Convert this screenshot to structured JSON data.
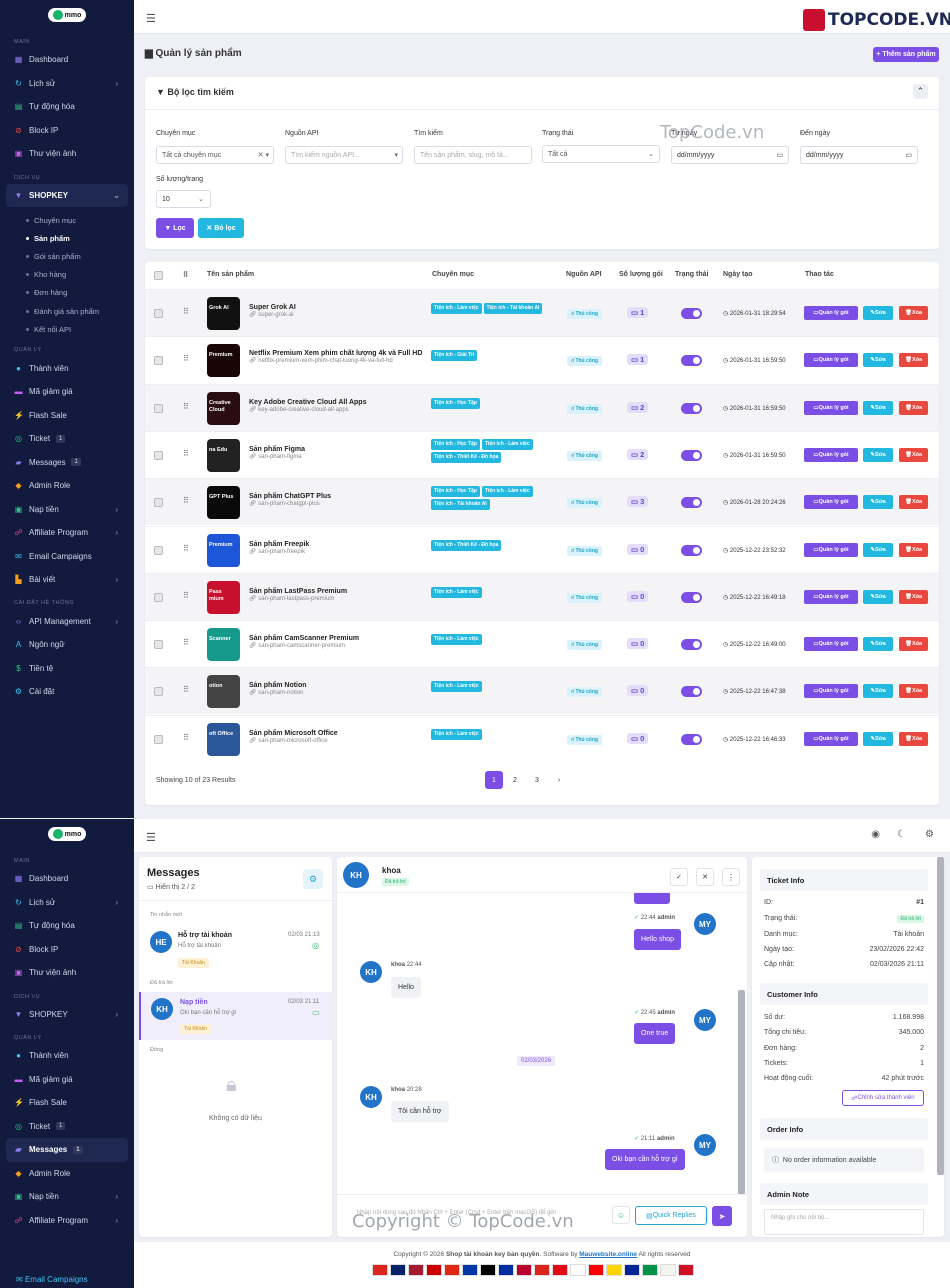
{
  "brand": "mmo",
  "topcode_logo": "TOPCODE.VN",
  "watermark_mid": "TopCode.vn",
  "watermark_bottom": "Copyright © TopCode.vn",
  "sidebar1": {
    "sec_main": "MAIN",
    "dashboard": "Dashboard",
    "lich_su": "Lịch sử",
    "tu_dong_hoa": "Tự động hóa",
    "block_ip": "Block IP",
    "thu_vien": "Thư viện ảnh",
    "sec_dich_vu": "DỊCH VỤ",
    "shopkey": "SHOPKEY",
    "sub": [
      "Chuyên mục",
      "Sản phẩm",
      "Gói sản phẩm",
      "Kho hàng",
      "Đơn hàng",
      "Đánh giá sản phẩm",
      "Kết nối API"
    ],
    "sec_quan_ly": "QUẢN LÝ",
    "thanh_vien": "Thành viên",
    "ma_giam_gia": "Mã giảm giá",
    "flash_sale": "Flash Sale",
    "ticket": "Ticket",
    "ticket_badge": "1",
    "messages": "Messages",
    "messages_badge": "1",
    "admin_role": "Admin Role",
    "nap_tien": "Nạp tiền",
    "affiliate": "Affiliate Program",
    "email": "Email Campaigns",
    "bai_viet": "Bài viết",
    "sec_cai_dat": "CÀI ĐẶT HỆ THỐNG",
    "api_mgmt": "API Management",
    "ngon_ngu": "Ngôn ngữ",
    "tien_te": "Tiền tệ",
    "cai_dat": "Cài đặt"
  },
  "page": {
    "title": "Quản lý sản phẩm",
    "add_button": "+ Thêm sản phẩm"
  },
  "filter": {
    "title": "Bộ lọc tìm kiếm",
    "chuyen_muc_label": "Chuyên mục",
    "chuyen_muc_value": "Tất cả chuyên mục",
    "nguon_api_label": "Nguồn API",
    "nguon_api_placeholder": "Tìm kiếm nguồn API...",
    "tim_kiem_label": "Tìm kiếm",
    "tim_kiem_placeholder": "Tên sản phẩm, slug, mô tả...",
    "trang_thai_label": "Trạng thái",
    "trang_thai_value": "Tất cả",
    "tu_ngay_label": "Từ ngày",
    "tu_ngay_value": "dd/mm/yyyy",
    "den_ngay_label": "Đến ngày",
    "den_ngay_value": "dd/mm/yyyy",
    "so_luong_label": "Số lượng/trang",
    "so_luong_value": "10",
    "loc_button": "Lọc",
    "bo_loc_button": "✕ Bỏ lọc"
  },
  "table": {
    "headers": [
      "Tên sản phẩm",
      "Chuyên mục",
      "Nguồn API",
      "Số lượng gói",
      "Trạng thái",
      "Ngày tạo",
      "Thao tác"
    ],
    "rows": [
      {
        "name": "Super Grok AI",
        "slug": "super-grok-ai",
        "tags": [
          "Tiện ích - Làm việc",
          "Tiện ích - Tài khoản AI"
        ],
        "api": "Thủ công",
        "count": "1",
        "date": "2026-01-31 18:29:54",
        "thumb": "Grok AI",
        "color": "#111111"
      },
      {
        "name": "Netflix Premium Xem phim chất lượng 4k và Full HD",
        "slug": "netflix-premium-xem-phim-chat-luong-4k-va-full-hd",
        "tags": [
          "Tiện ích - Giải Trí"
        ],
        "api": "Thủ công",
        "count": "1",
        "date": "2026-01-31 16:59:50",
        "thumb": "Premium",
        "color": "#1a0505"
      },
      {
        "name": "Key Adobe Creative Cloud All Apps",
        "slug": "key-adobe-creative-cloud-all-apps",
        "tags": [
          "Tiện ích - Học Tập"
        ],
        "api": "Thủ công",
        "count": "2",
        "date": "2026-01-31 16:59:50",
        "thumb": "Creative Cloud",
        "color": "#2a0d12"
      },
      {
        "name": "Sản phẩm Figma",
        "slug": "san-pham-figma",
        "tags": [
          "Tiện ích - Học Tập",
          "Tiện ích - Làm việc",
          "Tiện ích - Thiết Kế - Đồ họa"
        ],
        "api": "Thủ công",
        "count": "2",
        "date": "2026-01-31 16:59:50",
        "thumb": "na Edu",
        "color": "#222222"
      },
      {
        "name": "Sản phẩm ChatGPT Plus",
        "slug": "san-pham-chatgpt-plus",
        "tags": [
          "Tiện ích - Học Tập",
          "Tiện ích - Làm việc",
          "Tiện ích - Tài khoản AI"
        ],
        "api": "Thủ công",
        "count": "3",
        "date": "2026-01-28 20:24:26",
        "thumb": "GPT Plus",
        "color": "#0a0a0a"
      },
      {
        "name": "Sản phẩm Freepik",
        "slug": "san-pham-freepik",
        "tags": [
          "Tiện ích - Thiết Kế - Đồ họa"
        ],
        "api": "Thủ công",
        "count": "0",
        "date": "2025-12-22 23:52:32",
        "thumb": "Premium",
        "color": "#1d56d6"
      },
      {
        "name": "Sản phẩm LastPass Premium",
        "slug": "san-pham-lastpass-premium",
        "tags": [
          "Tiện ích - Làm việc"
        ],
        "api": "Thủ công",
        "count": "0",
        "date": "2025-12-22 16:49:18",
        "thumb": "Pass mium",
        "color": "#c8102e"
      },
      {
        "name": "Sản phẩm CamScanner Premium",
        "slug": "san-pham-camscanner-premium",
        "tags": [
          "Tiện ích - Làm việc"
        ],
        "api": "Thủ công",
        "count": "0",
        "date": "2025-12-22 16:49:00",
        "thumb": "Scanner",
        "color": "#159a8c"
      },
      {
        "name": "Sản phẩm Notion",
        "slug": "san-pham-notion",
        "tags": [
          "Tiện ích - Làm việc"
        ],
        "api": "Thủ công",
        "count": "0",
        "date": "2025-12-22 16:47:38",
        "thumb": "otion",
        "color": "#444444"
      },
      {
        "name": "Sản phẩm Microsoft Office",
        "slug": "san-pham-microsoft-office",
        "tags": [
          "Tiện ích - Làm việc"
        ],
        "api": "Thủ công",
        "count": "0",
        "date": "2025-12-22 16:46:33",
        "thumb": "oft Office",
        "color": "#2b579a"
      }
    ],
    "btn_manage": "Quản lý gói",
    "btn_edit": "Sửa",
    "btn_delete": "Xóa",
    "showing": "Showing 10 of 23 Results",
    "pages": [
      "1",
      "2",
      "3",
      "›"
    ]
  },
  "messages": {
    "title": "Messages",
    "count": "Hiển thị 2 / 2",
    "sec_new": "Tin nhắn mới",
    "sec_answered": "Đã trả lời",
    "sec_closed": "Đóng",
    "conv1": {
      "initials": "HE",
      "name": "Hỗ trợ tài khoản",
      "preview": "Hỗ trợ tài khoản",
      "time": "02/03 21:13",
      "tag": "Tài Khoản"
    },
    "conv2": {
      "initials": "KH",
      "name": "Nạp tiền",
      "preview": "Oki bạn cần hỗ trợ gì",
      "time": "02/03 21:11",
      "tag": "Tài Khoản"
    },
    "empty": "Không có dữ liệu",
    "chat_name": "khoa",
    "chat_status": "Đã trả lời",
    "m1_time": "22:44",
    "m1_user": "admin",
    "m1_text": "Hello shop",
    "m2_user": "khoa",
    "m2_time": "22:44",
    "m2_text": "Hello",
    "m3_time": "22:45",
    "m3_user": "admin",
    "m3_text": "One true",
    "date_sep": "02/03/2026",
    "m4_user": "khoa",
    "m4_time": "20:28",
    "m4_text": "Tôi cần hỗ trợ",
    "m5_time": "21:11",
    "m5_user": "admin",
    "m5_text": "Oki bạn cần hỗ trợ gì",
    "input_placeholder": "Nhập nội dung sau đó Nhấn Ctrl + Enter (Cmd + Enter trên macOS) để gửi",
    "quick_replies": "Quick Replies"
  },
  "ticket": {
    "title": "Ticket Info",
    "id_label": "ID:",
    "id": "#1",
    "status_label": "Trạng thái:",
    "status": "Đã trả lời",
    "cat_label": "Danh mục:",
    "cat": "Tài khoản",
    "created_label": "Ngày tạo:",
    "created": "23/02/2026 22:42",
    "updated_label": "Cập nhật:",
    "updated": "02/03/2026 21:11",
    "cust_title": "Customer Info",
    "balance_label": "Số dư:",
    "balance": "1.168.998",
    "spent_label": "Tổng chi tiêu:",
    "spent": "345.000",
    "orders_label": "Đơn hàng:",
    "orders": "2",
    "tickets_label": "Tickets:",
    "tickets": "1",
    "active_label": "Hoạt động cuối:",
    "active": "42 phút trước",
    "edit_member": "Chỉnh sửa thành viên",
    "order_title": "Order Info",
    "order_none": "No order information available",
    "note_title": "Admin Note",
    "note_placeholder": "Nhập ghi chú nội bộ..."
  },
  "footer": {
    "prefix": "Copyright © 2026 ",
    "shop": "Shop tài khoản key bản quyền",
    "mid": ". Software by ",
    "link": "Mauwebsite.online",
    "suffix": " All rights reserved",
    "flags": [
      "#da251d",
      "#012169",
      "#a51931",
      "#cc0001",
      "#de2910",
      "#0038a8",
      "#000000",
      "#032ea1",
      "#bc002d",
      "#da251d",
      "#e30a17",
      "#ffffff",
      "#fe0000",
      "#ffd500",
      "#002395",
      "#009246",
      "#f4f5f0",
      "#ce1126"
    ]
  }
}
